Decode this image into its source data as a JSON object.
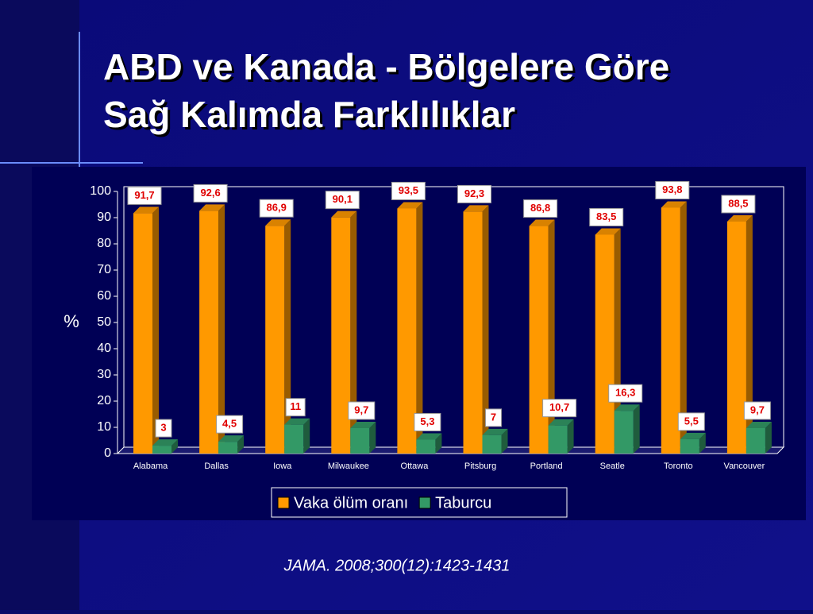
{
  "header": {
    "title_lines": [
      "ABD ve Kanada - Bölgelere Göre",
      "Sağ Kalımda Farklılıklar"
    ]
  },
  "chart_data": {
    "type": "bar",
    "y_label": "%",
    "categories": [
      "Alabama",
      "Dallas",
      "Iowa",
      "Milwaukee",
      "Ottawa",
      "Pitsburg",
      "Portland",
      "Seatle",
      "Toronto",
      "Vancouver"
    ],
    "series": [
      {
        "name": "Vaka ölüm oranı",
        "color": "#ff9900",
        "values": [
          91.7,
          92.6,
          86.9,
          90.1,
          93.5,
          92.3,
          86.8,
          83.5,
          93.8,
          88.5
        ],
        "value_labels": [
          "91,7",
          "92,6",
          "86,9",
          "90,1",
          "93,5",
          "92,3",
          "86,8",
          "83,5",
          "93,8",
          "88,5"
        ]
      },
      {
        "name": "Taburcu",
        "color": "#339966",
        "values": [
          3,
          4.5,
          11,
          9.7,
          5.3,
          7,
          10.7,
          16.3,
          5.5,
          9.7
        ],
        "value_labels": [
          "3",
          "4,5",
          "11",
          "9,7",
          "5,3",
          "7",
          "10,7",
          "16,3",
          "5,5",
          "9,7"
        ]
      }
    ],
    "ylim": [
      0,
      100
    ],
    "yticks": [
      0,
      10,
      20,
      30,
      40,
      50,
      60,
      70,
      80,
      90,
      100
    ],
    "grid": false,
    "legend": "bottom"
  },
  "citation": "JAMA. 2008;300(12):1423-1431"
}
